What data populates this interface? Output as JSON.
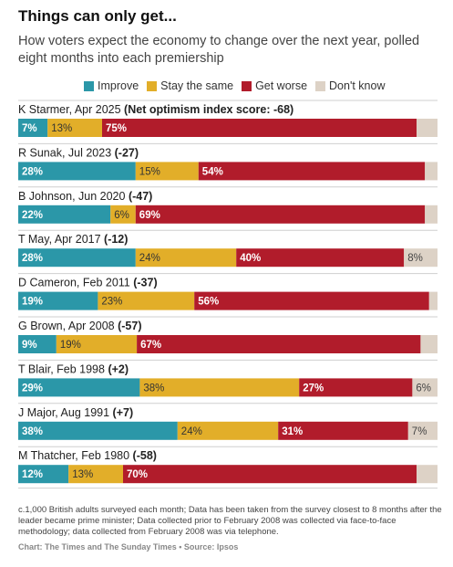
{
  "title": "Things can only get...",
  "subtitle": "How voters expect the economy to change over the next year, polled eight months into each premiership",
  "colors": {
    "improve": "#2b97a8",
    "same": "#e2ae29",
    "worse": "#b11c2b",
    "dont_know": "#ddd2c6"
  },
  "chart_data": {
    "type": "bar",
    "stacked": true,
    "orientation": "horizontal",
    "legend_position": "top",
    "series_names": [
      "Improve",
      "Stay the same",
      "Get worse",
      "Don't know"
    ],
    "rows": [
      {
        "name": "K Starmer, Apr 2025",
        "score_text": "(Net optimism index score: -68)",
        "values": [
          7,
          13,
          75,
          5
        ],
        "labels": [
          "7%",
          "13%",
          "75%",
          ""
        ]
      },
      {
        "name": "R Sunak, Jul 2023",
        "score_text": "(-27)",
        "values": [
          28,
          15,
          54,
          3
        ],
        "labels": [
          "28%",
          "15%",
          "54%",
          ""
        ]
      },
      {
        "name": "B Johnson, Jun 2020",
        "score_text": "(-47)",
        "values": [
          22,
          6,
          69,
          3
        ],
        "labels": [
          "22%",
          "6%",
          "69%",
          ""
        ]
      },
      {
        "name": "T May, Apr 2017",
        "score_text": "(-12)",
        "values": [
          28,
          24,
          40,
          8
        ],
        "labels": [
          "28%",
          "24%",
          "40%",
          "8%"
        ]
      },
      {
        "name": "D Cameron, Feb 2011",
        "score_text": "(-37)",
        "values": [
          19,
          23,
          56,
          2
        ],
        "labels": [
          "19%",
          "23%",
          "56%",
          ""
        ]
      },
      {
        "name": "G Brown, Apr 2008",
        "score_text": "(-57)",
        "values": [
          9,
          19,
          67,
          4
        ],
        "labels": [
          "9%",
          "19%",
          "67%",
          ""
        ]
      },
      {
        "name": "T Blair, Feb 1998",
        "score_text": "(+2)",
        "values": [
          29,
          38,
          27,
          6
        ],
        "labels": [
          "29%",
          "38%",
          "27%",
          "6%"
        ]
      },
      {
        "name": "J Major, Aug 1991",
        "score_text": "(+7)",
        "values": [
          38,
          24,
          31,
          7
        ],
        "labels": [
          "38%",
          "24%",
          "31%",
          "7%"
        ]
      },
      {
        "name": "M Thatcher, Feb 1980",
        "score_text": "(-58)",
        "values": [
          12,
          13,
          70,
          5
        ],
        "labels": [
          "12%",
          "13%",
          "70%",
          ""
        ]
      }
    ]
  },
  "footnote": "c.1,000 British adults surveyed each month; Data has been taken from the survey closest to 8 months after the leader became prime minister; Data collected prior to February 2008 was collected via face-to-face methodology; data collected from February 2008 was via telephone.",
  "source": "Chart: The Times and The Sunday Times • Source: Ipsos"
}
